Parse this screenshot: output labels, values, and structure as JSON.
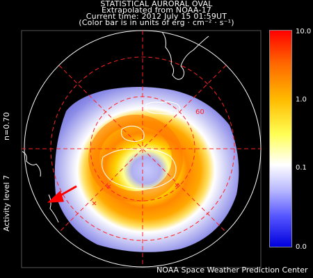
{
  "header": {
    "line1": "STATISTICAL AURORAL OVAL",
    "line2": "Extrapolated from NOAA-17",
    "line3": "Current time: 2012 July 15 01:59UT",
    "line4": "(Color bar is in units of erg · cm⁻² · s⁻¹)"
  },
  "side": {
    "n": "n=0.70",
    "activity": "Activity level 7"
  },
  "colorbar": {
    "ticks": [
      "10.0",
      "1.0",
      "0.1",
      "0.0"
    ]
  },
  "map": {
    "latitude_label": "60"
  },
  "footer": "NOAA Space Weather Prediction Center",
  "colors": {
    "plot_bg": "#000000",
    "grid": "#ff2222",
    "arrow": "#ff0000"
  }
}
